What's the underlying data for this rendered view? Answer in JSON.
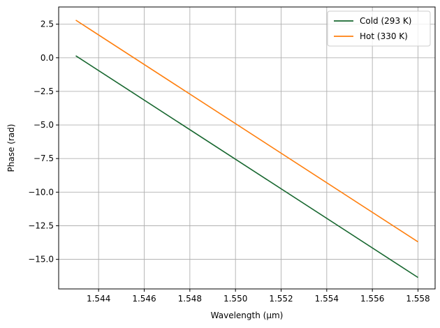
{
  "chart_data": {
    "type": "line",
    "title": "",
    "xlabel": "Wavelength (μm)",
    "ylabel": "Phase (rad)",
    "xlim": [
      1.54225,
      1.55875
    ],
    "ylim": [
      -17.2,
      3.78
    ],
    "xticks": [
      1.544,
      1.546,
      1.548,
      1.55,
      1.552,
      1.554,
      1.556,
      1.558
    ],
    "xtick_labels": [
      "1.544",
      "1.546",
      "1.548",
      "1.550",
      "1.552",
      "1.554",
      "1.556",
      "1.558"
    ],
    "yticks": [
      2.5,
      0.0,
      -2.5,
      -5.0,
      -7.5,
      -10.0,
      -12.5,
      -15.0
    ],
    "ytick_labels": [
      "2.5",
      "0.0",
      "−2.5",
      "−5.0",
      "−7.5",
      "−10.0",
      "−12.5",
      "−15.0"
    ],
    "grid": true,
    "legend_position": "top-right",
    "series": [
      {
        "name": "Cold (293 K)",
        "color": "#17672f",
        "x": [
          1.543,
          1.558
        ],
        "y": [
          0.15,
          -16.35
        ]
      },
      {
        "name": "Hot (330 K)",
        "color": "#ff7f0e",
        "x": [
          1.543,
          1.558
        ],
        "y": [
          2.8,
          -13.7
        ]
      }
    ]
  }
}
